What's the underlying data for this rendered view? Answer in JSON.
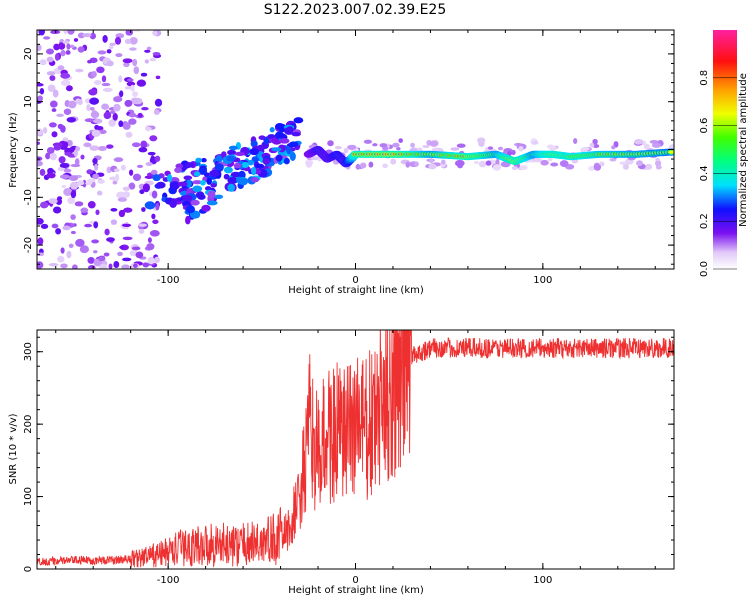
{
  "title": "S122.2023.007.02.39.E25",
  "colorbar": {
    "label": "Normalized spectral amplitude",
    "range": [
      0,
      1
    ],
    "ticks": [
      0.0,
      0.2,
      0.4,
      0.6,
      0.8
    ],
    "tick_labels": [
      "0.0",
      "0.2",
      "0.4",
      "0.6",
      "0.8"
    ]
  },
  "chart_data": [
    {
      "type": "heatmap",
      "xlabel": "Height of straight line (km)",
      "ylabel": "Frequency (Hz)",
      "xlim": [
        -170,
        170
      ],
      "ylim": [
        -25,
        25
      ],
      "xticks": [
        -100,
        0,
        100
      ],
      "yticks": [
        -20,
        -10,
        0,
        10,
        20
      ],
      "grid": false,
      "description_note": "",
      "regions": [
        {
          "x_range": [
            -170,
            -120
          ],
          "freq_range": [
            -25,
            25
          ],
          "amplitude": 0.1,
          "pattern": "scattered"
        },
        {
          "x_range": [
            -120,
            -30
          ],
          "freq_from": [
            -8,
            -8
          ],
          "freq_to": [
            -2,
            8
          ],
          "amplitude": 0.3,
          "pattern": "rising-streaks"
        },
        {
          "x_range": [
            -25,
            170
          ],
          "freq_center": -1,
          "amplitude": 0.85,
          "pattern": "narrow-band"
        }
      ],
      "band": {
        "x": [
          -25,
          -20,
          -15,
          -10,
          -5,
          0,
          20,
          40,
          60,
          75,
          85,
          95,
          105,
          115,
          130,
          150,
          170
        ],
        "freq": [
          -1,
          0,
          -2,
          -1,
          -3,
          -1,
          -1,
          -1,
          -1.5,
          -1,
          -2.5,
          -1,
          -1,
          -1.5,
          -1,
          -1,
          -0.5
        ],
        "amplitude": [
          0.3,
          0.45,
          0.4,
          0.5,
          0.45,
          0.85,
          0.9,
          0.7,
          0.85,
          0.7,
          0.9,
          0.7,
          0.85,
          0.8,
          0.75,
          0.7,
          0.65
        ]
      }
    },
    {
      "type": "line",
      "xlabel": "Height of straight line (km)",
      "ylabel": "SNR (10 * v/v)",
      "xlim": [
        -170,
        170
      ],
      "ylim": [
        0,
        330
      ],
      "xticks": [
        -100,
        0,
        100
      ],
      "yticks": [
        0,
        100,
        200,
        300
      ],
      "color": "#ee3030",
      "grid": false,
      "series": [
        {
          "x": [
            -170,
            -150,
            -130,
            -115,
            -105,
            -95,
            -85,
            -75,
            -65,
            -55,
            -45,
            -40,
            -35,
            -30,
            -27,
            -24,
            -20,
            -15,
            -10,
            -5,
            0,
            5,
            10,
            15,
            20,
            25,
            30,
            40,
            60,
            80,
            100,
            120,
            140,
            160,
            170
          ],
          "y": [
            10,
            12,
            12,
            15,
            20,
            28,
            32,
            35,
            32,
            35,
            40,
            45,
            55,
            100,
            140,
            200,
            150,
            190,
            185,
            180,
            210,
            190,
            200,
            230,
            260,
            285,
            295,
            305,
            305,
            305,
            305,
            305,
            305,
            305,
            305
          ]
        }
      ]
    }
  ]
}
